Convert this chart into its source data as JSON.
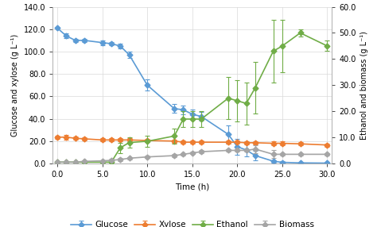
{
  "glucose_x": [
    0,
    1,
    2,
    3,
    5,
    6,
    7,
    8,
    10,
    13,
    14,
    15,
    16,
    19,
    20,
    21,
    22,
    24,
    25,
    27,
    30
  ],
  "glucose_y": [
    121,
    114,
    110,
    110,
    108,
    107,
    105,
    97,
    70,
    49,
    48,
    44,
    42,
    26,
    15,
    12,
    7,
    2,
    1,
    0.5,
    0.3
  ],
  "glucose_yerr": [
    0,
    2,
    1.5,
    1.5,
    2,
    1.5,
    2,
    3,
    5,
    4,
    4,
    4,
    4,
    8,
    7,
    6,
    4,
    1,
    1,
    0.5,
    0.3
  ],
  "xylose_x": [
    0,
    1,
    2,
    3,
    5,
    6,
    7,
    8,
    10,
    13,
    14,
    15,
    16,
    19,
    20,
    21,
    22,
    24,
    25,
    27,
    30
  ],
  "xylose_y": [
    23.5,
    23.5,
    22.5,
    22,
    21,
    21,
    21,
    21,
    20.5,
    20,
    19,
    19,
    19,
    19,
    19,
    18.5,
    18.5,
    18,
    18,
    17.5,
    16.5
  ],
  "xylose_yerr": [
    1.5,
    2,
    1.5,
    1.5,
    1.5,
    1.5,
    1.5,
    1.5,
    1.5,
    1.5,
    1.5,
    1.5,
    1.5,
    1.5,
    1.5,
    1.5,
    1.5,
    1.5,
    1.5,
    1.5,
    1.5
  ],
  "ethanol_x": [
    0,
    1,
    2,
    3,
    5,
    6,
    7,
    8,
    10,
    13,
    14,
    15,
    16,
    19,
    20,
    21,
    22,
    24,
    25,
    27,
    30
  ],
  "ethanol_y": [
    0.5,
    0.5,
    0.5,
    0.5,
    0.5,
    0.5,
    6,
    8,
    8.5,
    10.5,
    17,
    17,
    17,
    25,
    24,
    23,
    29,
    43,
    45,
    50,
    45
  ],
  "ethanol_yerr": [
    0.2,
    0.2,
    0.2,
    0.2,
    0.2,
    0.2,
    2,
    2,
    2,
    3,
    3,
    3,
    3,
    8,
    8,
    8,
    10,
    12,
    10,
    1.5,
    2
  ],
  "biomass_x": [
    0,
    1,
    2,
    3,
    5,
    6,
    7,
    8,
    10,
    13,
    14,
    15,
    16,
    19,
    20,
    21,
    22,
    24,
    25,
    27,
    30
  ],
  "biomass_y": [
    0.5,
    0.5,
    0.5,
    0.8,
    1,
    1.2,
    1.5,
    2,
    2.5,
    3,
    3.5,
    4,
    4.5,
    5,
    5,
    5,
    5.5,
    3.5,
    3.5,
    3.5,
    3.5
  ],
  "biomass_yerr": [
    0.1,
    0.1,
    0.1,
    0.3,
    0.3,
    0.5,
    0.5,
    0.5,
    0.5,
    0.5,
    0.5,
    0.5,
    0.5,
    0.5,
    0.5,
    0.5,
    1.5,
    1.5,
    0.5,
    0.5,
    0.5
  ],
  "ylabel_left": "Glucose and xylose (g L⁻¹)",
  "ylabel_right": "Ethanol and biomass (g L⁻¹)",
  "xlabel": "Time (h)",
  "ylim_left": [
    0,
    140
  ],
  "ylim_right": [
    0,
    60
  ],
  "xlim": [
    -0.5,
    30.5
  ],
  "yticks_left": [
    0,
    20,
    40,
    60,
    80,
    100,
    120,
    140
  ],
  "yticks_right": [
    0,
    10,
    20,
    30,
    40,
    50,
    60
  ],
  "xticks": [
    0,
    5,
    10,
    15,
    20,
    25,
    30
  ],
  "glucose_color": "#5B9BD5",
  "xylose_color": "#ED7D31",
  "ethanol_color": "#70AD47",
  "biomass_color": "#A5A5A5",
  "legend_labels": [
    "Glucose",
    "Xylose",
    "Ethanol",
    "Biomass"
  ],
  "background_color": "#FFFFFF",
  "grid_color": "#D9D9D9"
}
